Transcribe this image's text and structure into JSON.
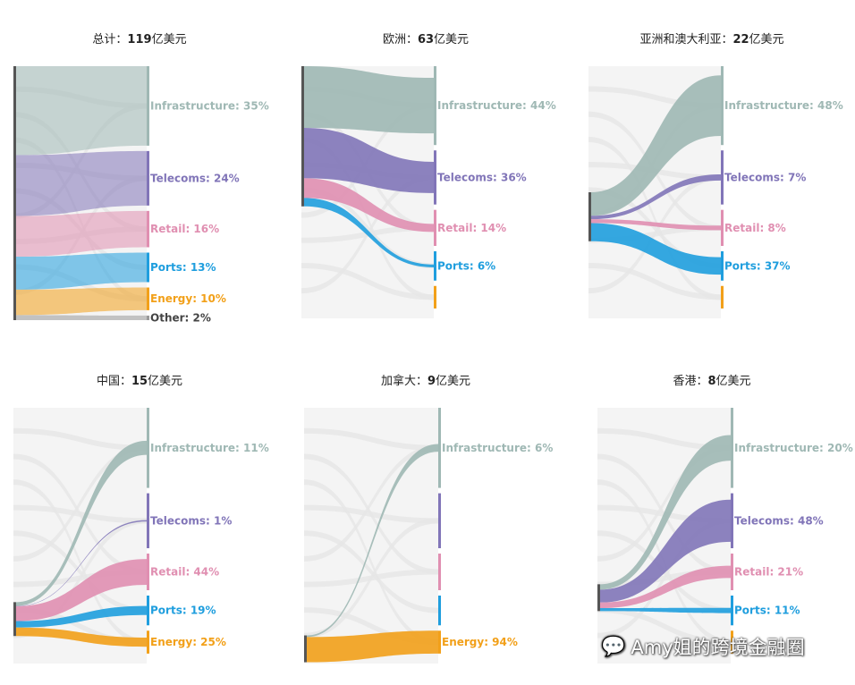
{
  "watermark": {
    "icon": "wechat-icon",
    "text": "Amy姐的跨境金融圈"
  },
  "colors": {
    "Infrastructure": "#9fb8b4",
    "Telecoms": "#8175b8",
    "Retail": "#e08fb1",
    "Ports": "#1f9ede",
    "Energy": "#f2a019",
    "Other": "#999999",
    "ghost": "#ececec",
    "source": "#555555"
  },
  "chart_data": [
    {
      "type": "sankey",
      "id": "total",
      "title_prefix": "总计：",
      "title_number": "119",
      "title_suffix": "亿美元",
      "targets": [
        "Infrastructure",
        "Telecoms",
        "Retail",
        "Ports",
        "Energy",
        "Other"
      ],
      "labels": [
        "Infrastructure: 35%",
        "Telecoms: 24%",
        "Retail: 16%",
        "Ports: 13%",
        "Energy: 10%",
        "Other: 2%"
      ],
      "values": [
        35,
        24,
        16,
        13,
        10,
        2
      ],
      "highlight": "all"
    },
    {
      "type": "sankey",
      "id": "europe",
      "title_prefix": "欧洲：",
      "title_number": "63",
      "title_suffix": "亿美元",
      "targets": [
        "Infrastructure",
        "Telecoms",
        "Retail",
        "Ports"
      ],
      "labels": [
        "Infrastructure: 44%",
        "Telecoms: 36%",
        "Retail: 14%",
        "Ports: 6%"
      ],
      "values": [
        44,
        36,
        14,
        6
      ],
      "highlight": "region"
    },
    {
      "type": "sankey",
      "id": "asia-australia",
      "title_prefix": "亚洲和澳大利亚：",
      "title_number": "22",
      "title_suffix": "亿美元",
      "targets": [
        "Infrastructure",
        "Telecoms",
        "Retail",
        "Ports"
      ],
      "labels": [
        "Infrastructure: 48%",
        "Telecoms: 7%",
        "Retail: 8%",
        "Ports: 37%"
      ],
      "values": [
        48,
        7,
        8,
        37
      ],
      "highlight": "region"
    },
    {
      "type": "sankey",
      "id": "china",
      "title_prefix": "中国：",
      "title_number": "15",
      "title_suffix": "亿美元",
      "targets": [
        "Infrastructure",
        "Telecoms",
        "Retail",
        "Ports",
        "Energy"
      ],
      "labels": [
        "Infrastructure: 11%",
        "Telecoms: 1%",
        "Retail: 44%",
        "Ports: 19%",
        "Energy: 25%"
      ],
      "values": [
        11,
        1,
        44,
        19,
        25
      ],
      "highlight": "region"
    },
    {
      "type": "sankey",
      "id": "canada",
      "title_prefix": "加拿大：",
      "title_number": "9",
      "title_suffix": "亿美元",
      "targets": [
        "Infrastructure",
        "Energy"
      ],
      "labels": [
        "Infrastructure: 6%",
        "Energy: 94%"
      ],
      "values": [
        6,
        94
      ],
      "highlight": "region"
    },
    {
      "type": "sankey",
      "id": "hong-kong",
      "title_prefix": "香港：",
      "title_number": "8",
      "title_suffix": "亿美元",
      "targets": [
        "Infrastructure",
        "Telecoms",
        "Retail",
        "Ports"
      ],
      "labels": [
        "Infrastructure: 20%",
        "Telecoms: 48%",
        "Retail: 21%",
        "Ports: 11%"
      ],
      "values": [
        20,
        48,
        21,
        11
      ],
      "highlight": "region"
    }
  ]
}
